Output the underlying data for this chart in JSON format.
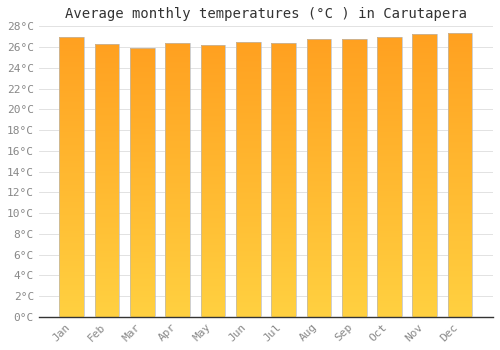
{
  "title": "Average monthly temperatures (°C ) in Carutapera",
  "months": [
    "Jan",
    "Feb",
    "Mar",
    "Apr",
    "May",
    "Jun",
    "Jul",
    "Aug",
    "Sep",
    "Oct",
    "Nov",
    "Dec"
  ],
  "values": [
    27.0,
    26.3,
    25.9,
    26.4,
    26.2,
    26.5,
    26.4,
    26.8,
    26.8,
    27.0,
    27.3,
    27.4
  ],
  "bar_color_bottom": "#FFD040",
  "bar_color_top": "#FFA020",
  "bar_edge_color": "#BBBBBB",
  "background_color": "#FFFFFF",
  "grid_color": "#DDDDDD",
  "ylim": [
    0,
    28
  ],
  "ytick_step": 2,
  "title_fontsize": 10,
  "tick_fontsize": 8,
  "bar_width": 0.7,
  "font_color": "#888888",
  "axis_color": "#333333"
}
